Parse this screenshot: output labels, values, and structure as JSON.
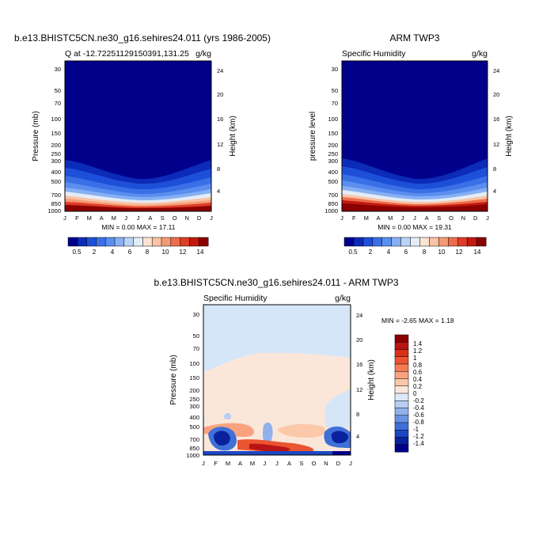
{
  "chart_data": [
    {
      "type": "heatmap",
      "title": "b.e13.BHISTC5CN.ne30_g16.sehires24.011 (yrs 1986-2005)",
      "subtitle_left": "Q at -12.72251129150391,131.25",
      "units": "g/kg",
      "xlabel": "",
      "ylabel": "Pressure (mb)",
      "ylabel_right": "Height (km)",
      "x_ticks": [
        "J",
        "F",
        "M",
        "A",
        "M",
        "J",
        "J",
        "A",
        "S",
        "O",
        "N",
        "D",
        "J"
      ],
      "y_ticks": [
        "30",
        "50",
        "70",
        "100",
        "150",
        "200",
        "250",
        "300",
        "400",
        "500",
        "700",
        "850",
        "1000"
      ],
      "y_right_ticks": [
        "24",
        "20",
        "16",
        "12",
        "8",
        "4"
      ],
      "stats": "MIN =   0.00 MAX =  17.11",
      "min": 0.0,
      "max": 17.11
    },
    {
      "type": "heatmap",
      "title": "ARM TWP3",
      "subtitle_left": "Specific Humidity",
      "units": "g/kg",
      "xlabel": "",
      "ylabel": "pressure level",
      "ylabel_right": "Height (km)",
      "x_ticks": [
        "J",
        "F",
        "M",
        "A",
        "M",
        "J",
        "J",
        "A",
        "S",
        "O",
        "N",
        "D",
        "J"
      ],
      "y_ticks": [
        "30",
        "50",
        "70",
        "100",
        "150",
        "200",
        "250",
        "300",
        "400",
        "500",
        "700",
        "850",
        "1000"
      ],
      "y_right_ticks": [
        "24",
        "20",
        "16",
        "12",
        "8",
        "4"
      ],
      "stats": "MIN =   0.00 MAX =  19.31",
      "min": 0.0,
      "max": 19.31
    },
    {
      "type": "heatmap",
      "title": "b.e13.BHISTC5CN.ne30_g16.sehires24.011 - ARM TWP3",
      "subtitle_left": "Specific Humidity",
      "units": "g/kg",
      "xlabel": "",
      "ylabel": "Pressure (mb)",
      "ylabel_right": "Height (km)",
      "x_ticks": [
        "J",
        "F",
        "M",
        "A",
        "M",
        "J",
        "J",
        "A",
        "S",
        "O",
        "N",
        "D",
        "J"
      ],
      "y_ticks": [
        "30",
        "50",
        "70",
        "100",
        "150",
        "200",
        "250",
        "300",
        "400",
        "500",
        "700",
        "850",
        "1000"
      ],
      "y_right_ticks": [
        "24",
        "20",
        "16",
        "12",
        "8",
        "4"
      ],
      "stats": "MIN =  -2.65 MAX =   1.18",
      "min": -2.65,
      "max": 1.18
    }
  ],
  "shared_colorbar": {
    "labels": [
      "0.5",
      "2",
      "4",
      "6",
      "8",
      "10",
      "12",
      "14"
    ],
    "colors": [
      "#00008b",
      "#0b2bb8",
      "#1e4fd8",
      "#3a6fe6",
      "#5a8ff0",
      "#86b0f3",
      "#b8d4f8",
      "#e3ecf7",
      "#fbe3d3",
      "#f9c3a4",
      "#f59a76",
      "#ee6d4c",
      "#de3d26",
      "#c21a10",
      "#8b0000"
    ]
  },
  "diff_colorbar": {
    "labels": [
      "1.4",
      "1.2",
      "1",
      "0.8",
      "0.6",
      "0.4",
      "0.2",
      "0",
      "-0.2",
      "-0.4",
      "-0.6",
      "-0.8",
      "-1",
      "-1.2",
      "-1.4"
    ],
    "colors": [
      "#8b0000",
      "#b81414",
      "#d6301b",
      "#ea5430",
      "#f57b55",
      "#f9a37e",
      "#fbc8aa",
      "#fbe7d9",
      "#dce8f8",
      "#b7cff3",
      "#8fb2ed",
      "#6893e4",
      "#3f70d8",
      "#1c46c2",
      "#0a219e",
      "#00008b"
    ]
  },
  "colors": {
    "dark_navy": "#00008b",
    "background": "#ffffff",
    "diff_background": "#d6e6f9",
    "diff_warm": "#fbe7d9"
  }
}
